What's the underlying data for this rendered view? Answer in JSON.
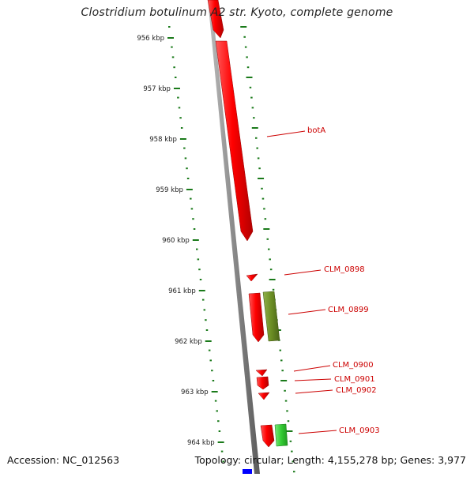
{
  "title": "Clostridium botulinum A2 str. Kyoto, complete genome",
  "footer": {
    "accession": "Accession: NC_012563",
    "summary": "Topology: circular; Length: 4,155,278 bp; Genes: 3,977"
  },
  "colors": {
    "backbone": "#8a8a8a",
    "tick": "#1a7a1a",
    "forward_gene": "#ff0000",
    "reverse_gene_dark": "#6b8e23",
    "reverse_gene_light": "#33cc33",
    "label": "#cc0000",
    "marker": "#0000ff"
  },
  "ruler": {
    "ticks": [
      "956 kbp",
      "957 kbp",
      "958 kbp",
      "959 kbp",
      "960 kbp",
      "961 kbp",
      "962 kbp",
      "963 kbp",
      "964 kbp"
    ]
  },
  "genes": [
    {
      "label": "botA",
      "strand": "forward"
    },
    {
      "label": "CLM_0898",
      "strand": "forward"
    },
    {
      "label": "CLM_0899",
      "strand": "forward/reverse"
    },
    {
      "label": "CLM_0900",
      "strand": "forward"
    },
    {
      "label": "CLM_0901",
      "strand": "forward"
    },
    {
      "label": "CLM_0902",
      "strand": "forward"
    },
    {
      "label": "CLM_0903",
      "strand": "forward/reverse"
    }
  ]
}
